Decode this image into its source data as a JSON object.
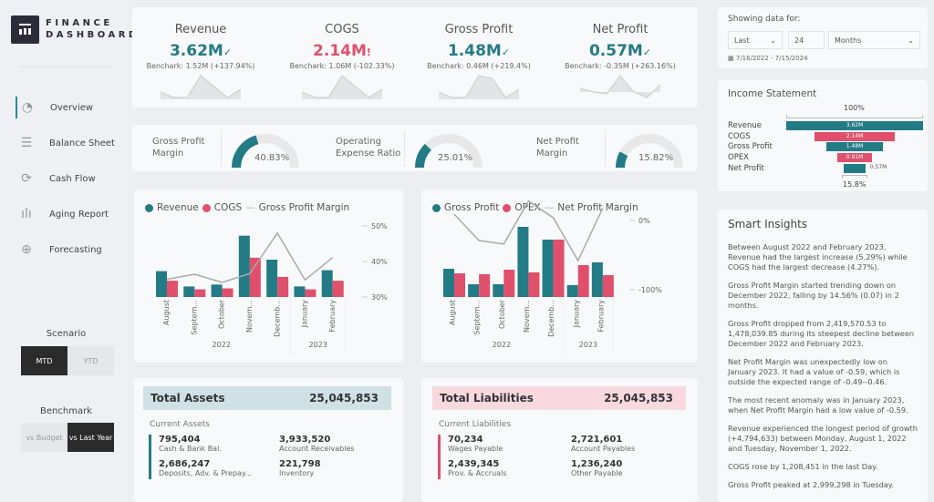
{
  "brand": {
    "line1": "FINANCE",
    "line2": "DASHBOARD"
  },
  "nav": [
    {
      "label": "Overview",
      "icon": "pie-chart-icon"
    },
    {
      "label": "Balance Sheet",
      "icon": "list-icon"
    },
    {
      "label": "Cash Flow",
      "icon": "refresh-icon"
    },
    {
      "label": "Aging Report",
      "icon": "bar-chart-icon"
    },
    {
      "label": "Forecasting",
      "icon": "crosshair-icon"
    }
  ],
  "scenario": {
    "title": "Scenario",
    "options": [
      "MTD",
      "YTD"
    ],
    "selected": "MTD"
  },
  "benchmark": {
    "title": "Benchmark",
    "options": [
      "vs Budget",
      "vs Last Year"
    ],
    "selected": "vs Last Year"
  },
  "kpis": [
    {
      "title": "Revenue",
      "value": "3.62M",
      "flag": "✓",
      "benchmark": "Benchark: 1.52M (+137.94%)",
      "status": "good",
      "spark": [
        3,
        1,
        1,
        9,
        5,
        1,
        4
      ]
    },
    {
      "title": "COGS",
      "value": "2.14M",
      "flag": "!",
      "benchmark": "Benchark: 1.06M (-102.33%)",
      "status": "bad",
      "spark": [
        3,
        1,
        1,
        9,
        5,
        1,
        4
      ]
    },
    {
      "title": "Gross Profit",
      "value": "1.48M",
      "flag": "✓",
      "benchmark": "Benchark: 0.46M (+219.4%)",
      "status": "good",
      "spark": [
        3,
        1,
        1,
        9,
        8,
        1,
        4
      ]
    },
    {
      "title": "Net Profit",
      "value": "0.57M",
      "flag": "✓",
      "benchmark": "Benchark: -0.35M (+263.16%)",
      "status": "good",
      "spark": [
        2,
        0,
        -1,
        9,
        0,
        -3,
        4
      ]
    }
  ],
  "gauges": [
    {
      "label": "Gross Profit Margin",
      "value": "40.83%",
      "fraction": 0.4083
    },
    {
      "label": "Operating Expense Ratio",
      "value": "25.01%",
      "fraction": 0.2501
    },
    {
      "label": "Net Profit Margin",
      "value": "15.82%",
      "fraction": 0.1582
    }
  ],
  "filter": {
    "title": "Showing data for:",
    "mode": "Last",
    "count": "24",
    "unit": "Months",
    "range": "7/16/2022 - 7/15/2024"
  },
  "income": {
    "title": "Income Statement",
    "top": "100%",
    "bottom": "15.8%",
    "rows": [
      {
        "label": "Revenue",
        "value": "3.62M",
        "amount": 3.62,
        "color": "#237b85"
      },
      {
        "label": "COGS",
        "value": "2.14M",
        "amount": 2.14,
        "color": "#e0506c"
      },
      {
        "label": "Gross Profit",
        "value": "1.48M",
        "amount": 1.48,
        "color": "#237b85"
      },
      {
        "label": "OPEX",
        "value": "0.91M",
        "amount": 0.91,
        "color": "#e0506c"
      },
      {
        "label": "Net Profit",
        "value": "0.57M",
        "amount": 0.57,
        "color": "#237b85"
      }
    ]
  },
  "insights": {
    "title": "Smart Insights",
    "items": [
      "Between August 2022 and February 2023, Revenue had the largest increase (5.29%) while COGS had the largest decrease (4.27%).",
      "Gross Profit Margin started trending down on December 2022, falling by 14.56% (0.07) in 2 months.",
      "Gross Profit dropped from 2,419,570.53 to 1,478,039.85 during its steepest decline between December 2022 and February 2023.",
      "Net Profit Margin was unexpectedly low on January 2023. It had a value of -0.59, which is outside the expected range of -0.49--0.46.",
      "The most recent anomaly was in January 2023, when Net Profit Margin had a low value of -0.59.",
      "Revenue experienced the longest period of growth (+4,794,633) between Monday, August 1, 2022 and Tuesday, November 1, 2022.",
      "COGS rose by 1,208,451 in the last Day.",
      "Gross Profit peaked at 2,999,298 in Tuesday."
    ]
  },
  "chart_data": [
    {
      "type": "bar",
      "categories": [
        "August",
        "Septem...",
        "October",
        "Novem...",
        "Decemb...",
        "January",
        "February"
      ],
      "groups": [
        {
          "label": "2022",
          "span": 5
        },
        {
          "label": "2023",
          "span": 2
        }
      ],
      "series": [
        {
          "name": "Revenue",
          "color": "#237b85",
          "values": [
            27,
            11,
            13,
            64,
            39,
            11,
            28
          ]
        },
        {
          "name": "COGS",
          "color": "#e0506c",
          "values": [
            17,
            8,
            9,
            41,
            21,
            8,
            17
          ]
        }
      ],
      "line": {
        "name": "Gross Profit Margin",
        "color": "#aaaaaa",
        "values": [
          35.0,
          36.4,
          34.1,
          36.6,
          48.0,
          34.8,
          41.1
        ]
      },
      "y2_ticks": [
        "50%",
        "40%",
        "30%"
      ],
      "y2lim": [
        30,
        50
      ]
    },
    {
      "type": "bar",
      "categories": [
        "August",
        "Septem...",
        "October",
        "Novem...",
        "Decemb...",
        "January",
        "February"
      ],
      "groups": [
        {
          "label": "2022",
          "span": 5
        },
        {
          "label": "2023",
          "span": 2
        }
      ],
      "series": [
        {
          "name": "Gross Profit",
          "color": "#237b85",
          "values": [
            31,
            14,
            14,
            77,
            63,
            13,
            38
          ]
        },
        {
          "name": "OPEX",
          "color": "#e0506c",
          "values": [
            26,
            25,
            30,
            27,
            63,
            35,
            24
          ]
        }
      ],
      "line": {
        "name": "Net Profit Margin",
        "color": "#aaaaaa",
        "values": [
          9,
          -29,
          -34,
          28,
          4,
          -58,
          18
        ]
      },
      "y2_ticks": [
        "0%",
        "-100%"
      ],
      "y2lim": [
        -100,
        0
      ]
    }
  ],
  "assets": {
    "title": "Total Assets",
    "total": "25,045,853",
    "subtitle": "Current Assets",
    "items": [
      {
        "value": "795,404",
        "label": "Cash & Bank Bal."
      },
      {
        "value": "3,933,520",
        "label": "Account Receivables"
      },
      {
        "value": "2,686,247",
        "label": "Deposits, Adv. & Prepay..."
      },
      {
        "value": "221,798",
        "label": "Inventory"
      }
    ]
  },
  "liabilities": {
    "title": "Total Liabilities",
    "total": "25,045,853",
    "subtitle": "Current Liabilities",
    "items": [
      {
        "value": "70,234",
        "label": "Wages Payable"
      },
      {
        "value": "2,721,601",
        "label": "Account Payables"
      },
      {
        "value": "2,439,345",
        "label": "Prov. & Accruals"
      },
      {
        "value": "1,236,240",
        "label": "Other Payable"
      }
    ]
  }
}
